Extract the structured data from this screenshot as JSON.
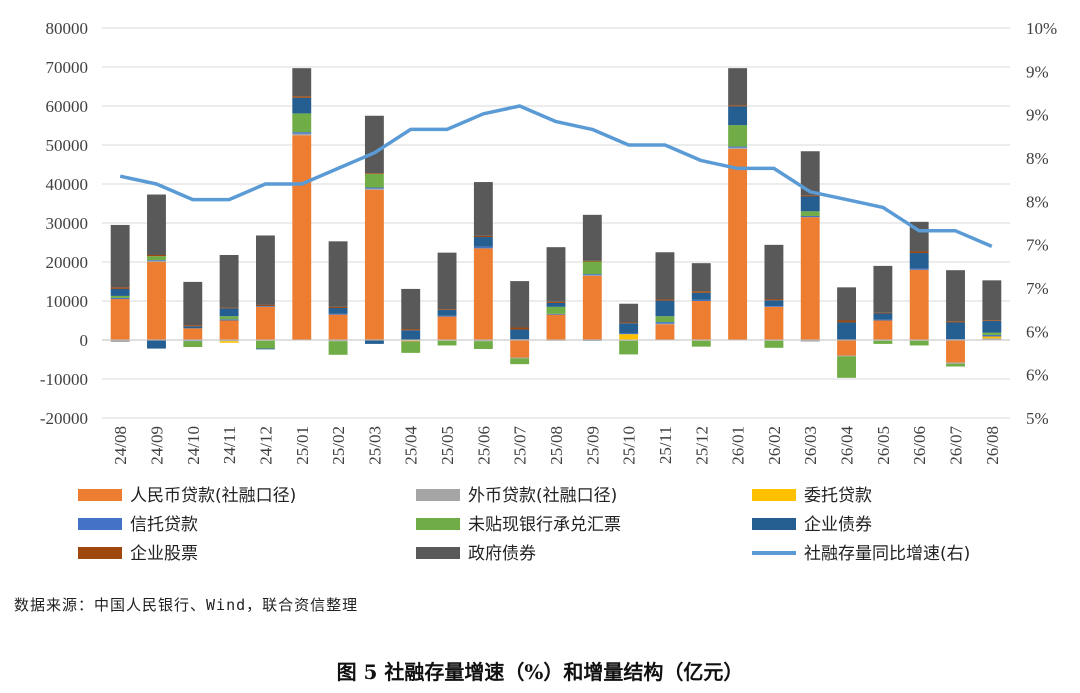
{
  "chart_data": {
    "type": "bar",
    "stacked": true,
    "categories": [
      "24/08",
      "24/09",
      "24/10",
      "24/11",
      "24/12",
      "25/01",
      "25/02",
      "25/03",
      "25/04",
      "25/05",
      "25/06",
      "25/07",
      "25/08",
      "25/09",
      "25/10",
      "25/11",
      "25/12",
      "26/01",
      "26/02",
      "26/03",
      "26/04",
      "26/05",
      "26/06",
      "26/07",
      "26/08"
    ],
    "ylim": [
      -20000,
      80000
    ],
    "yticks": [
      "80000",
      "70000",
      "60000",
      "50000",
      "40000",
      "30000",
      "20000",
      "10000",
      "0",
      "-10000",
      "-20000"
    ],
    "y2lim": [
      5,
      10
    ],
    "y2ticks": [
      "10%",
      "9%",
      "9%",
      "8%",
      "8%",
      "7%",
      "7%",
      "6%",
      "6%",
      "5%"
    ],
    "series": [
      {
        "name": "人民币贷款(社融口径)",
        "color": "#ED7D31",
        "values": [
          10500,
          20000,
          3000,
          5000,
          8500,
          52500,
          6500,
          38500,
          0,
          6000,
          23500,
          -4500,
          6500,
          16500,
          0,
          4000,
          10000,
          49000,
          8500,
          31500,
          -4000,
          5000,
          18000,
          -5800,
          0
        ]
      },
      {
        "name": "外币贷款(社融口径)",
        "color": "#A5A5A5",
        "values": [
          -500,
          300,
          -200,
          -300,
          -200,
          400,
          -300,
          300,
          -200,
          -200,
          -300,
          -200,
          -200,
          100,
          -200,
          200,
          -200,
          300,
          -200,
          -400,
          -200,
          -200,
          -200,
          -300,
          400
        ]
      },
      {
        "name": "委托贷款",
        "color": "#FFC000",
        "values": [
          0,
          0,
          0,
          -400,
          0,
          0,
          0,
          0,
          -200,
          0,
          0,
          0,
          0,
          0,
          1500,
          0,
          0,
          0,
          0,
          0,
          0,
          0,
          0,
          0,
          500
        ]
      },
      {
        "name": "信托贷款",
        "color": "#4472C4",
        "values": [
          300,
          200,
          -100,
          300,
          200,
          400,
          200,
          300,
          -100,
          200,
          400,
          200,
          200,
          300,
          300,
          400,
          300,
          300,
          200,
          300,
          0,
          200,
          300,
          200,
          400
        ]
      },
      {
        "name": "未贴现银行承兑汇票",
        "color": "#70AD47",
        "values": [
          500,
          1000,
          -1500,
          800,
          -2000,
          4800,
          -3500,
          3500,
          -2800,
          -1200,
          -2000,
          -1500,
          1800,
          3200,
          -3500,
          1500,
          -1500,
          5500,
          -1800,
          1200,
          -5500,
          -800,
          -1200,
          -700,
          600
        ]
      },
      {
        "name": "企业债券",
        "color": "#255E91",
        "values": [
          1800,
          -2200,
          500,
          2000,
          -200,
          4000,
          1500,
          -1000,
          2500,
          1500,
          2500,
          2500,
          1000,
          -200,
          2500,
          4000,
          1800,
          4800,
          1500,
          3800,
          4500,
          1600,
          4000,
          4300,
          3000
        ]
      },
      {
        "name": "企业股票",
        "color": "#9E480E",
        "values": [
          400,
          300,
          300,
          200,
          300,
          400,
          300,
          200,
          300,
          200,
          300,
          500,
          300,
          200,
          200,
          300,
          400,
          300,
          300,
          300,
          500,
          200,
          400,
          300,
          200
        ]
      },
      {
        "name": "政府债券",
        "color": "#595959",
        "values": [
          16000,
          15500,
          11100,
          13500,
          17800,
          7200,
          16800,
          14700,
          10300,
          14500,
          13800,
          11900,
          14000,
          11800,
          4800,
          12100,
          7200,
          9500,
          13900,
          11300,
          8500,
          12000,
          7600,
          13100,
          10200
        ]
      }
    ],
    "line": {
      "name": "社融存量同比增速(右)",
      "color": "#5B9BD5",
      "values": [
        8.1,
        8.0,
        7.8,
        7.8,
        8.0,
        8.0,
        8.2,
        8.4,
        8.7,
        8.7,
        8.9,
        9.0,
        8.8,
        8.7,
        8.5,
        8.5,
        8.3,
        8.2,
        8.2,
        7.9,
        7.8,
        7.7,
        7.4,
        7.4,
        7.2
      ]
    }
  },
  "source_text": "数据来源：中国人民银行、Wind，联合资信整理",
  "caption": "图 5   社融存量增速（%）和增量结构（亿元）"
}
